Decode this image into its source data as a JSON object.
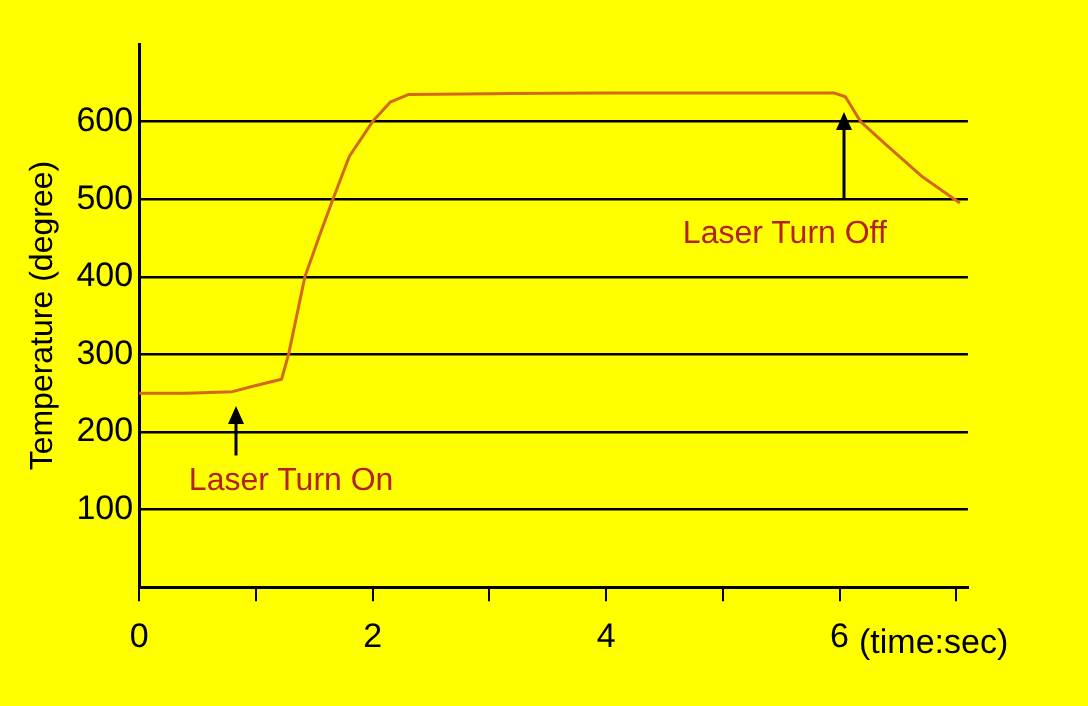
{
  "chart_data": {
    "type": "line",
    "ylabel": "Temperature (degree)",
    "xlabel": "(time:sec)",
    "x": [
      0,
      0.4,
      0.8,
      1.0,
      1.22,
      1.28,
      1.35,
      1.42,
      1.55,
      1.66,
      1.8,
      2.0,
      2.15,
      2.31,
      3,
      4,
      5,
      5.95,
      6.05,
      6.18,
      6.4,
      6.7,
      7.03
    ],
    "series": [
      {
        "color": "#d2691e",
        "values": [
          250,
          250,
          252,
          260,
          268,
          300,
          350,
          400,
          455,
          500,
          555,
          600,
          625,
          635,
          636,
          637,
          637,
          637,
          632,
          600,
          570,
          530,
          495
        ]
      }
    ],
    "xlim": [
      0,
      7.1
    ],
    "xticks": [
      0,
      {
        "value": 1,
        "label": null
      },
      2,
      {
        "value": 3,
        "label": null
      },
      4,
      {
        "value": 5,
        "label": null
      },
      6,
      {
        "value": 7,
        "label": null
      }
    ],
    "ylim": [
      0,
      700
    ],
    "yticks": [
      100,
      200,
      300,
      400,
      500,
      600
    ],
    "grid": "y",
    "legend": false,
    "marker": "none",
    "line_style": "solid",
    "annotations": [
      "Laser Turn On",
      "Laser Turn Off"
    ]
  }
}
